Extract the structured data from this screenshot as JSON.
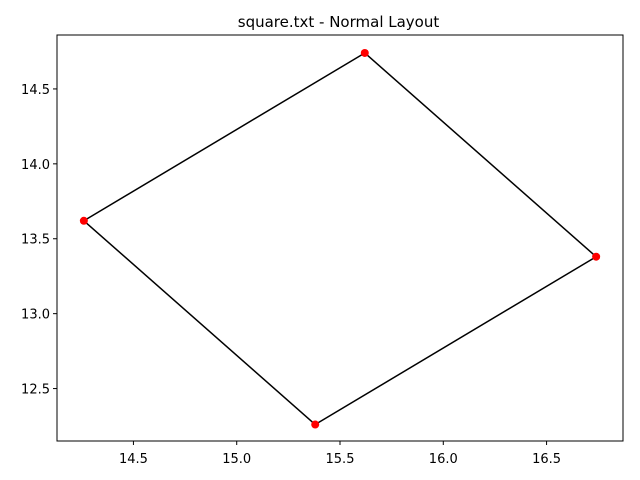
{
  "chart_data": {
    "type": "line",
    "title": "square.txt - Normal Layout",
    "xlabel": "",
    "ylabel": "",
    "xlim": [
      14.13,
      16.87
    ],
    "ylim": [
      12.15,
      14.86
    ],
    "xticks": [
      14.5,
      15.0,
      15.5,
      16.0,
      16.5
    ],
    "yticks": [
      12.5,
      13.0,
      13.5,
      14.0,
      14.5
    ],
    "xtick_labels": [
      "14.5",
      "15.0",
      "15.5",
      "16.0",
      "16.5"
    ],
    "ytick_labels": [
      "12.5",
      "13.0",
      "13.5",
      "14.0",
      "14.5"
    ],
    "grid": false,
    "edges": [
      {
        "from": [
          14.26,
          13.62
        ],
        "to": [
          15.62,
          14.74
        ]
      },
      {
        "from": [
          15.62,
          14.74
        ],
        "to": [
          16.74,
          13.38
        ]
      },
      {
        "from": [
          16.74,
          13.38
        ],
        "to": [
          15.38,
          12.26
        ]
      },
      {
        "from": [
          15.38,
          12.26
        ],
        "to": [
          14.26,
          13.62
        ]
      }
    ],
    "nodes": [
      {
        "x": 14.26,
        "y": 13.62
      },
      {
        "x": 15.62,
        "y": 14.74
      },
      {
        "x": 16.74,
        "y": 13.38
      },
      {
        "x": 15.38,
        "y": 12.26
      }
    ],
    "line_color": "#000000",
    "node_color": "#ff0000"
  }
}
